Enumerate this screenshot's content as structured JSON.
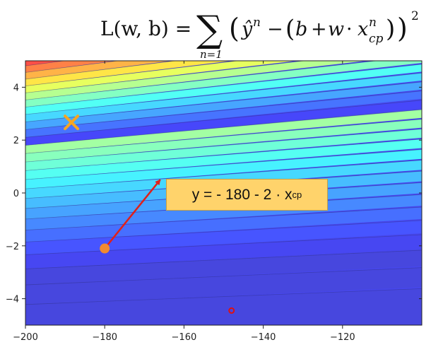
{
  "chart_data": {
    "type": "contour",
    "formula": {
      "lhs": "L(w, b) =",
      "sum_symbol": "∑",
      "sum_lower": "n=1",
      "term_open": "(",
      "y_hat": "ŷ",
      "y_sup": "n",
      "minus": "−",
      "inner_open": "(",
      "b": "b",
      "plus": "+",
      "w": "w",
      "dot": "·",
      "x": "x",
      "x_sup": "n",
      "x_sub": "cp",
      "inner_close": ")",
      "term_close": ")",
      "square": "2"
    },
    "xlim": [
      -200,
      -100
    ],
    "ylim": [
      -5,
      5
    ],
    "xticks": [
      -200,
      -180,
      -160,
      -140,
      -120
    ],
    "yticks": [
      4,
      2,
      0,
      -2,
      -4
    ],
    "xtick_labels": [
      "−200",
      "−180",
      "−160",
      "−140",
      "−120"
    ],
    "ytick_labels": [
      "4",
      "2",
      "0",
      "−2",
      "−4"
    ],
    "colormap": "jet",
    "contour_levels": 28,
    "points": [
      {
        "name": "minimum",
        "marker": "x",
        "x": -188.4,
        "y": 2.67,
        "color": "#f5a623"
      },
      {
        "name": "current",
        "marker": "filled-circle",
        "x": -180,
        "y": -2.1,
        "color": "#f28a30"
      },
      {
        "name": "other",
        "marker": "open-circle",
        "x": -148,
        "y": -4.45,
        "color": "#e01010"
      }
    ],
    "arrow": {
      "from": [
        -180,
        -2.1
      ],
      "to": [
        -166,
        0.5
      ],
      "color": "#e0201a"
    },
    "annotation": {
      "text_main": "y = - 180 - 2 · x",
      "text_sub": "cp"
    }
  }
}
